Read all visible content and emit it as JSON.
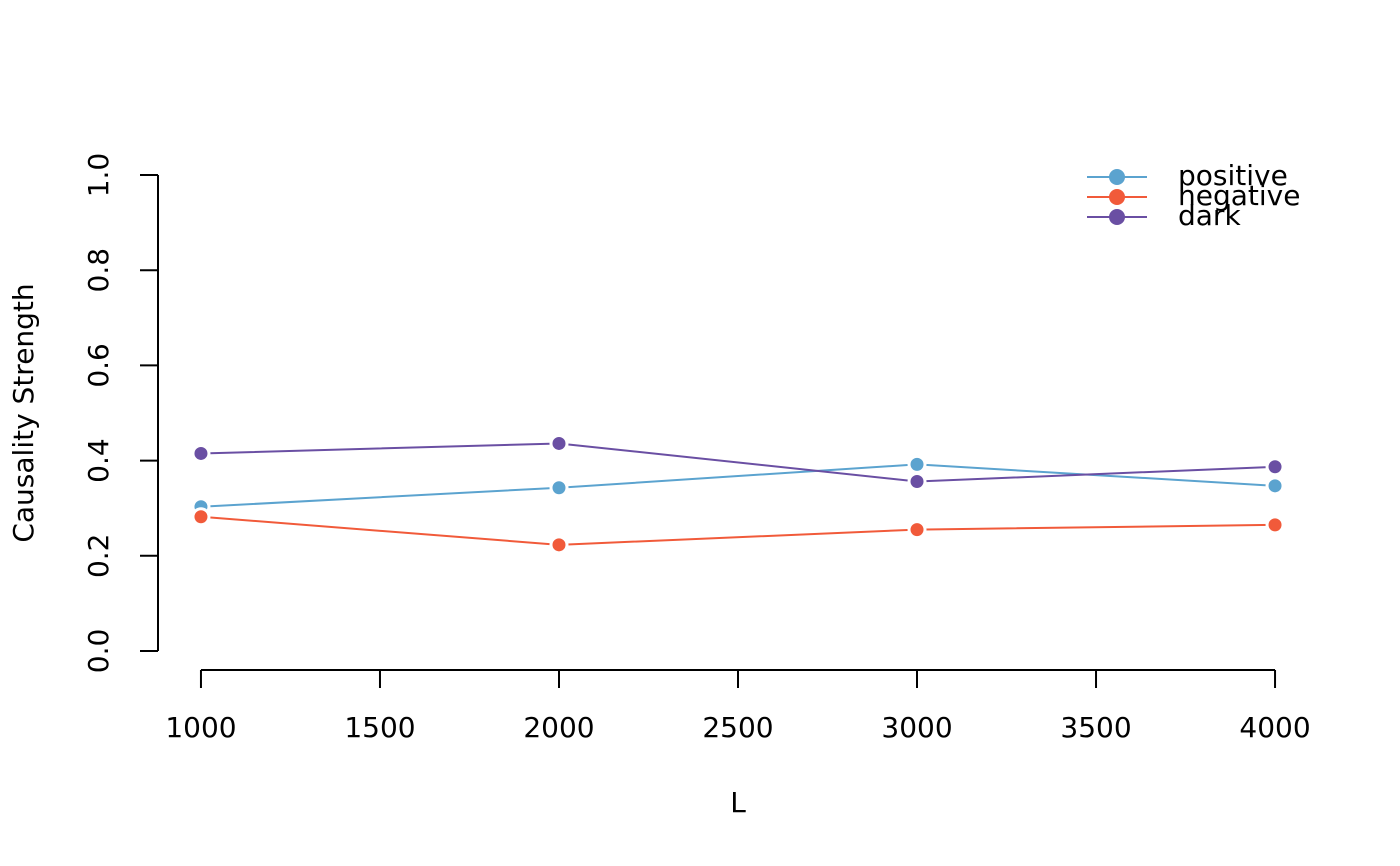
{
  "chart_data": {
    "type": "line",
    "x_label": "L",
    "y_label": "Causality Strength",
    "x": [
      1000,
      2000,
      3000,
      4000
    ],
    "series": [
      {
        "name": "positive",
        "color": "#5ba3cf",
        "values": [
          0.303,
          0.343,
          0.392,
          0.347
        ]
      },
      {
        "name": "negative",
        "color": "#f15a3a",
        "values": [
          0.282,
          0.223,
          0.255,
          0.265
        ]
      },
      {
        "name": "dark",
        "color": "#6a4fa3",
        "values": [
          0.415,
          0.436,
          0.356,
          0.387
        ]
      }
    ],
    "xlim": [
      880,
      4120
    ],
    "ylim": [
      -0.04,
      1.04
    ],
    "xticks": [
      1000,
      1500,
      2000,
      2500,
      3000,
      3500,
      4000
    ],
    "yticks": [
      {
        "value": 0,
        "label": "0.0"
      },
      0.2,
      0.4,
      0.6,
      0.8,
      {
        "value": 1,
        "label": "1.0"
      }
    ],
    "grid": false,
    "legend": "top-right"
  }
}
